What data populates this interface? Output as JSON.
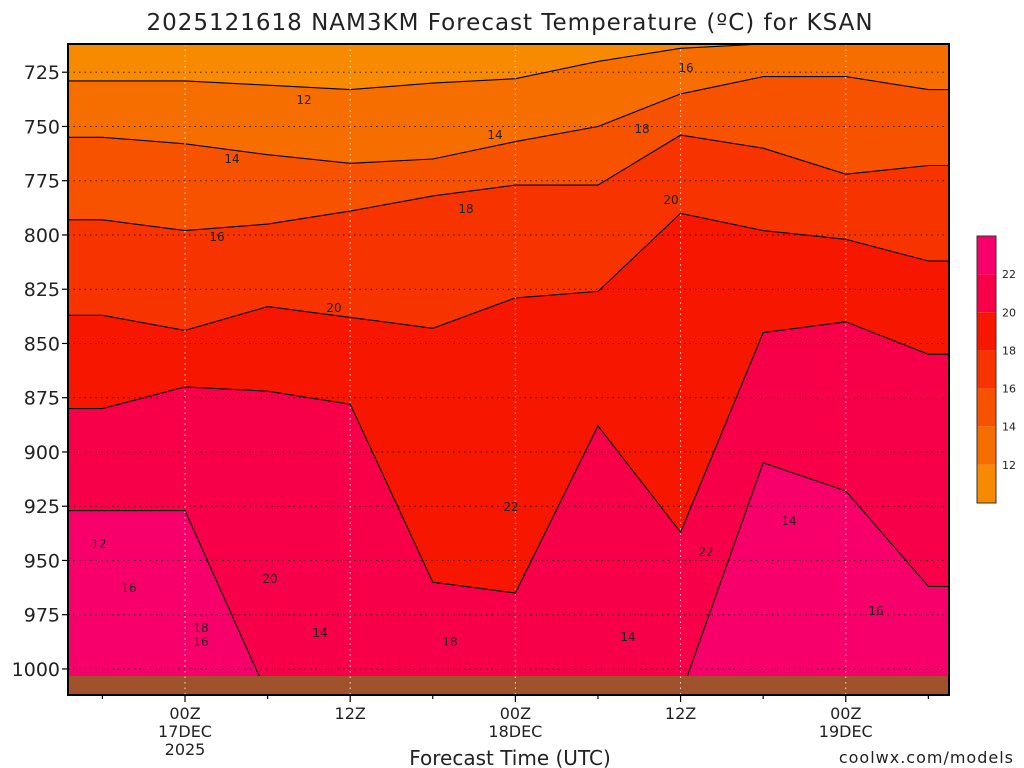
{
  "header": {
    "title": "2025121618 NAM3KM Forecast Temperature (ºC) for KSAN"
  },
  "footer": {
    "credit": "coolwx.com/models"
  },
  "colors": {
    "bands": [
      "#f78a00",
      "#f76e00",
      "#f75200",
      "#f73400",
      "#f71700",
      "#f70049",
      "#f7006b"
    ],
    "ground": "#a0522d",
    "credit": "#e0304a",
    "contour": "#000000"
  },
  "chart_data": {
    "type": "contour",
    "title": "2025121618 NAM3KM Forecast Temperature (ºC) for KSAN",
    "xlabel": "Forecast Time (UTC)",
    "ylabel": "",
    "y_axis": "pressure (hPa), inverted",
    "ylim": [
      1012,
      712
    ],
    "y_ticks": [
      725,
      750,
      775,
      800,
      825,
      850,
      875,
      900,
      925,
      950,
      975,
      1000
    ],
    "x_ticks": [
      {
        "lines": [
          "00Z",
          "17DEC",
          "2025"
        ]
      },
      {
        "lines": [
          "12Z"
        ]
      },
      {
        "lines": [
          "00Z",
          "18DEC"
        ]
      },
      {
        "lines": [
          "12Z"
        ]
      },
      {
        "lines": [
          "00Z",
          "19DEC"
        ]
      }
    ],
    "x_hours": [
      -6,
      0,
      6,
      12,
      18,
      24,
      30,
      36,
      42,
      48,
      54
    ],
    "contour_levels": [
      12,
      14,
      16,
      18,
      20,
      22
    ],
    "legend": {
      "position": "right",
      "labels": [
        "22",
        "20",
        "18",
        "16",
        "14",
        "12"
      ]
    },
    "contour_labels": [
      "12",
      "14",
      "14",
      "16",
      "16",
      "18",
      "18",
      "20",
      "20",
      "20",
      "22",
      "22",
      "12",
      "14",
      "16",
      "16",
      "18",
      "14",
      "16",
      "18",
      "14"
    ],
    "isotherms": [
      {
        "level": 12,
        "p": [
          729,
          729,
          731,
          733,
          730,
          728,
          720,
          714,
          712,
          712,
          712
        ]
      },
      {
        "level": 14,
        "p": [
          755,
          758,
          763,
          767,
          765,
          757,
          750,
          735,
          727,
          727,
          733
        ]
      },
      {
        "level": 16,
        "p": [
          793,
          798,
          795,
          789,
          782,
          777,
          777,
          754,
          760,
          772,
          768
        ]
      },
      {
        "level": 18,
        "p": [
          837,
          844,
          833,
          838,
          843,
          829,
          826,
          790,
          798,
          802,
          812
        ]
      },
      {
        "level": 20,
        "p": [
          880,
          870,
          872,
          878,
          960,
          965,
          888,
          937,
          845,
          840,
          855
        ]
      },
      {
        "level": 22,
        "p": [
          927,
          927,
          1012,
          1012,
          1012,
          1012,
          1012,
          1012,
          905,
          918,
          962
        ]
      }
    ]
  }
}
